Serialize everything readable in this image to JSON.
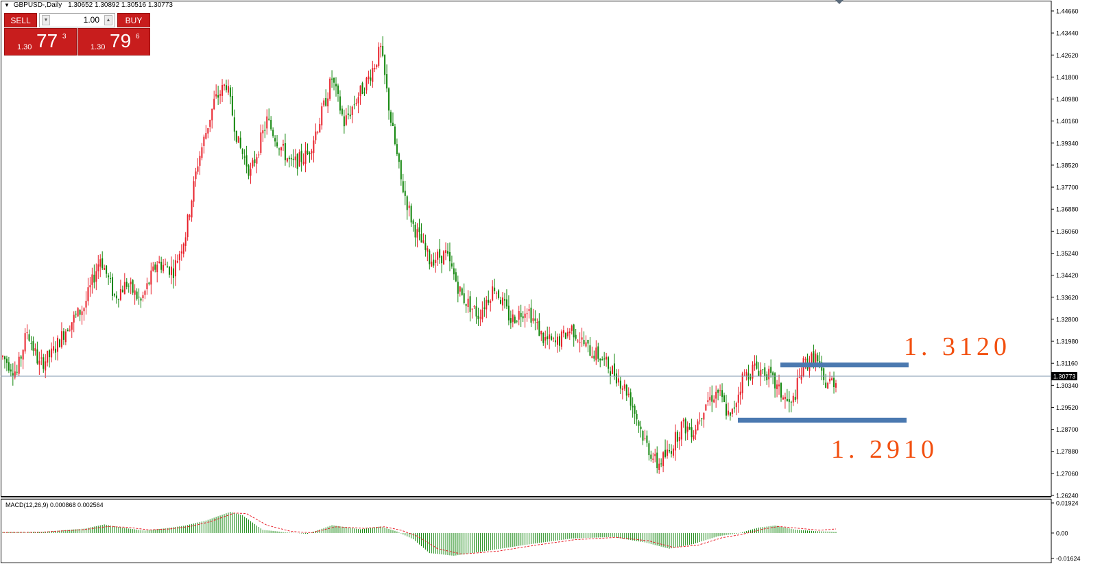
{
  "header": {
    "symbol_label": "GBPUSD-,Daily",
    "ohlc_label": "1.30652 1.30892 1.30516 1.30773"
  },
  "trade_panel": {
    "sell_label": "SELL",
    "buy_label": "BUY",
    "lots": "1.00",
    "sell_price": {
      "small": "1.30",
      "big": "77",
      "sup": "3"
    },
    "buy_price": {
      "small": "1.30",
      "big": "79",
      "sup": "6"
    }
  },
  "annotations": {
    "resistance_label": "1. 3120",
    "support_label": "1. 2910"
  },
  "macd_label": "MACD(12,26,9) 0.000868 0.002564",
  "colors": {
    "bull": "#e8202a",
    "bear": "#11860b",
    "level_line": "#4b79b0",
    "annotation": "#f24f0f",
    "current_line": "#7d95ad",
    "macd_hist": "#11860b",
    "macd_signal": "#e8202a",
    "panel_red": "#c81d1d"
  },
  "chart_data": [
    {
      "type": "candlestick",
      "title": "GBPUSD-,Daily",
      "ylim": [
        1.2624,
        1.4466
      ],
      "y_ticks": [
        "1.44660",
        "1.43440",
        "1.42620",
        "1.41800",
        "1.40980",
        "1.40160",
        "1.39340",
        "1.38520",
        "1.37700",
        "1.36880",
        "1.36060",
        "1.35240",
        "1.34420",
        "1.33620",
        "1.32800",
        "1.31980",
        "1.31160",
        "1.30340",
        "1.29520",
        "1.28700",
        "1.27880",
        "1.27060",
        "1.26240"
      ],
      "current_price": "1.30773",
      "level_lines": [
        {
          "name": "resistance",
          "value": 1.312,
          "label": "1. 3120"
        },
        {
          "name": "support",
          "value": 1.291,
          "label": "1. 2910"
        }
      ],
      "anchors": [
        [
          0,
          1.315
        ],
        [
          7,
          1.309
        ],
        [
          12,
          1.325
        ],
        [
          18,
          1.312
        ],
        [
          24,
          1.316
        ],
        [
          32,
          1.327
        ],
        [
          40,
          1.334
        ],
        [
          48,
          1.353
        ],
        [
          55,
          1.338
        ],
        [
          61,
          1.343
        ],
        [
          68,
          1.336
        ],
        [
          76,
          1.351
        ],
        [
          84,
          1.348
        ],
        [
          90,
          1.362
        ],
        [
          96,
          1.389
        ],
        [
          104,
          1.412
        ],
        [
          110,
          1.419
        ],
        [
          116,
          1.396
        ],
        [
          122,
          1.385
        ],
        [
          130,
          1.405
        ],
        [
          136,
          1.396
        ],
        [
          142,
          1.388
        ],
        [
          150,
          1.392
        ],
        [
          156,
          1.405
        ],
        [
          162,
          1.421
        ],
        [
          168,
          1.404
        ],
        [
          174,
          1.413
        ],
        [
          180,
          1.421
        ],
        [
          186,
          1.432
        ],
        [
          191,
          1.405
        ],
        [
          196,
          1.382
        ],
        [
          202,
          1.365
        ],
        [
          210,
          1.352
        ],
        [
          218,
          1.354
        ],
        [
          226,
          1.338
        ],
        [
          234,
          1.331
        ],
        [
          242,
          1.342
        ],
        [
          250,
          1.329
        ],
        [
          258,
          1.334
        ],
        [
          266,
          1.322
        ],
        [
          272,
          1.32
        ],
        [
          280,
          1.326
        ],
        [
          288,
          1.318
        ],
        [
          294,
          1.315
        ],
        [
          302,
          1.308
        ],
        [
          308,
          1.301
        ],
        [
          316,
          1.283
        ],
        [
          322,
          1.274
        ],
        [
          328,
          1.279
        ],
        [
          334,
          1.289
        ],
        [
          340,
          1.287
        ],
        [
          346,
          1.298
        ],
        [
          352,
          1.302
        ],
        [
          358,
          1.291
        ],
        [
          364,
          1.307
        ],
        [
          370,
          1.311
        ],
        [
          376,
          1.309
        ],
        [
          382,
          1.302
        ],
        [
          388,
          1.296
        ],
        [
          394,
          1.312
        ],
        [
          400,
          1.315
        ],
        [
          404,
          1.305
        ],
        [
          410,
          1.306
        ]
      ],
      "x_span": [
        4,
        1219
      ]
    },
    {
      "type": "bar",
      "title": "MACD(12,26,9) 0.000868 0.002564",
      "ylim": [
        -0.01624,
        0.01924
      ],
      "y_ticks": [
        "0.01924",
        "0.00",
        "-0.01624"
      ],
      "series": [
        {
          "name": "MACD",
          "anchors": [
            [
              0,
              0.0006
            ],
            [
              20,
              0.0008
            ],
            [
              40,
              0.0028
            ],
            [
              50,
              0.0055
            ],
            [
              60,
              0.0032
            ],
            [
              70,
              0.0016
            ],
            [
              80,
              0.003
            ],
            [
              90,
              0.0048
            ],
            [
              100,
              0.008
            ],
            [
              112,
              0.0135
            ],
            [
              118,
              0.0114
            ],
            [
              128,
              0.002
            ],
            [
              140,
              0.0004
            ],
            [
              150,
              -0.0005
            ],
            [
              162,
              0.005
            ],
            [
              176,
              0.0024
            ],
            [
              186,
              0.0042
            ],
            [
              194,
              0.001
            ],
            [
              202,
              -0.004
            ],
            [
              210,
              -0.0128
            ],
            [
              222,
              -0.0145
            ],
            [
              240,
              -0.011
            ],
            [
              260,
              -0.007
            ],
            [
              280,
              -0.0035
            ],
            [
              300,
              -0.0025
            ],
            [
              316,
              -0.006
            ],
            [
              328,
              -0.01
            ],
            [
              340,
              -0.007
            ],
            [
              352,
              -0.002
            ],
            [
              362,
              -0.0002
            ],
            [
              372,
              0.0035
            ],
            [
              380,
              0.0048
            ],
            [
              390,
              0.0022
            ],
            [
              400,
              0.0012
            ],
            [
              410,
              0.0008
            ]
          ]
        },
        {
          "name": "Signal",
          "anchors": [
            [
              0,
              0.0004
            ],
            [
              20,
              0.0006
            ],
            [
              40,
              0.0022
            ],
            [
              52,
              0.0042
            ],
            [
              62,
              0.0036
            ],
            [
              72,
              0.002
            ],
            [
              82,
              0.0026
            ],
            [
              92,
              0.0042
            ],
            [
              102,
              0.0072
            ],
            [
              114,
              0.0128
            ],
            [
              120,
              0.0124
            ],
            [
              130,
              0.005
            ],
            [
              142,
              0.001
            ],
            [
              152,
              0.0002
            ],
            [
              164,
              0.004
            ],
            [
              178,
              0.003
            ],
            [
              188,
              0.004
            ],
            [
              196,
              0.0018
            ],
            [
              204,
              -0.002
            ],
            [
              214,
              -0.01
            ],
            [
              226,
              -0.0135
            ],
            [
              244,
              -0.0115
            ],
            [
              262,
              -0.0078
            ],
            [
              282,
              -0.0042
            ],
            [
              302,
              -0.0028
            ],
            [
              318,
              -0.005
            ],
            [
              330,
              -0.0092
            ],
            [
              342,
              -0.0078
            ],
            [
              354,
              -0.003
            ],
            [
              364,
              -0.0008
            ],
            [
              374,
              0.0025
            ],
            [
              382,
              0.0042
            ],
            [
              392,
              0.003
            ],
            [
              402,
              0.0018
            ],
            [
              410,
              0.0026
            ]
          ]
        }
      ]
    }
  ]
}
